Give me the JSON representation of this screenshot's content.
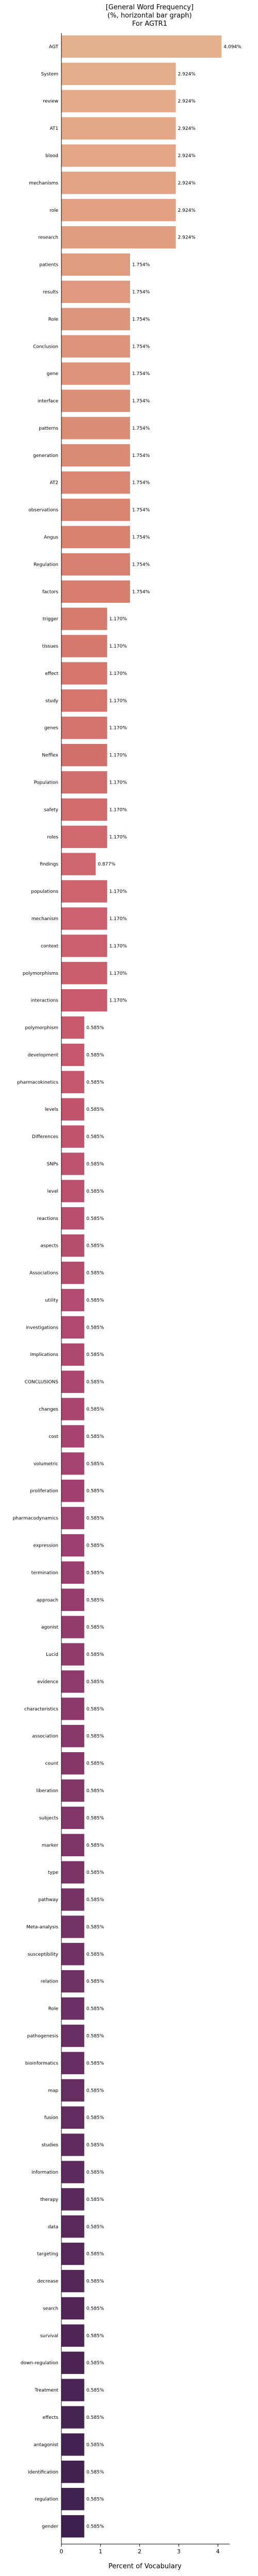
{
  "chart_data": {
    "type": "bar",
    "orientation": "horizontal",
    "title_lines": [
      "[General Word Frequency]",
      "(%, horizontal bar graph)",
      "For AGTR1"
    ],
    "xlabel": "Percent of Vocabulary",
    "xlim": [
      0,
      4.3
    ],
    "xticks": [
      0,
      1,
      2,
      3,
      4
    ],
    "grid": false,
    "color_gradient": [
      "#e5b08c",
      "#d9826f",
      "#c8586d",
      "#9e3f70",
      "#6a2f63",
      "#3d1f4d"
    ],
    "categories": [
      "AGT",
      "System",
      "review",
      "AT1",
      "blood",
      "mechanisms",
      "role",
      "research",
      "patients",
      "results",
      "Role",
      "Conclusion",
      "gene",
      "interface",
      "patterns",
      "generation",
      "AT2",
      "observations",
      "Angus",
      "Regulation",
      "factors",
      "trigger",
      "tissues",
      "effect",
      "study",
      "genes",
      "Nefflex",
      "Population",
      "safety",
      "roles",
      "findings",
      "populations",
      "mechanism",
      "context",
      "polymorphisms",
      "interactions",
      "polymorphism",
      "development",
      "pharmacokinetics",
      "levels",
      "Differences",
      "SNPs",
      "level",
      "reactions",
      "aspects",
      "Associations",
      "utility",
      "investigations",
      "Implications",
      "CONCLUSIONS",
      "changes",
      "cost",
      "volumetric",
      "proliferation",
      "pharmacodynamics",
      "expression",
      "termination",
      "approach",
      "agonist",
      "Lucid",
      "evidence",
      "characteristics",
      "association",
      "count",
      "liberation",
      "subjects",
      "marker",
      "type",
      "pathway",
      "Meta-analysis",
      "susceptibility",
      "relation",
      "Role",
      "pathogenesis",
      "bioinformatics",
      "map",
      "fusion",
      "studies",
      "information",
      "therapy",
      "data",
      "targeting",
      "decrease",
      "search",
      "survival",
      "down-regulation",
      "Treatment",
      "effects",
      "antagonist",
      "identification",
      "regulation",
      "gender"
    ],
    "values": [
      4.094,
      2.924,
      2.924,
      2.924,
      2.924,
      2.924,
      2.924,
      2.924,
      1.754,
      1.754,
      1.754,
      1.754,
      1.754,
      1.754,
      1.754,
      1.754,
      1.754,
      1.754,
      1.754,
      1.754,
      1.754,
      1.17,
      1.17,
      1.17,
      1.17,
      1.17,
      1.17,
      1.17,
      1.17,
      1.17,
      0.877,
      1.17,
      1.17,
      1.17,
      1.17,
      1.17,
      0.585,
      0.585,
      0.585,
      0.585,
      0.585,
      0.585,
      0.585,
      0.585,
      0.585,
      0.585,
      0.585,
      0.585,
      0.585,
      0.585,
      0.585,
      0.585,
      0.585,
      0.585,
      0.585,
      0.585,
      0.585,
      0.585,
      0.585,
      0.585,
      0.585,
      0.585,
      0.585,
      0.585,
      0.585,
      0.585,
      0.585,
      0.585,
      0.585,
      0.585,
      0.585,
      0.585,
      0.585,
      0.585,
      0.585,
      0.585,
      0.585,
      0.585,
      0.585,
      0.585,
      0.585,
      0.585,
      0.585,
      0.585,
      0.585,
      0.585,
      0.585,
      0.585,
      0.585,
      0.585,
      0.585,
      0.585
    ],
    "value_labels": [
      "4.094%",
      "2.924%",
      "2.924%",
      "2.924%",
      "2.924%",
      "2.924%",
      "2.924%",
      "2.924%",
      "1.754%",
      "1.754%",
      "1.754%",
      "1.754%",
      "1.754%",
      "1.754%",
      "1.754%",
      "1.754%",
      "1.754%",
      "1.754%",
      "1.754%",
      "1.754%",
      "1.754%",
      "1.170%",
      "1.170%",
      "1.170%",
      "1.170%",
      "1.170%",
      "1.170%",
      "1.170%",
      "1.170%",
      "1.170%",
      "0.877%",
      "1.170%",
      "1.170%",
      "1.170%",
      "1.170%",
      "1.170%",
      "0.585%",
      "0.585%",
      "0.585%",
      "0.585%",
      "0.585%",
      "0.585%",
      "0.585%",
      "0.585%",
      "0.585%",
      "0.585%",
      "0.585%",
      "0.585%",
      "0.585%",
      "0.585%",
      "0.585%",
      "0.585%",
      "0.585%",
      "0.585%",
      "0.585%",
      "0.585%",
      "0.585%",
      "0.585%",
      "0.585%",
      "0.585%",
      "0.585%",
      "0.585%",
      "0.585%",
      "0.585%",
      "0.585%",
      "0.585%",
      "0.585%",
      "0.585%",
      "0.585%",
      "0.585%",
      "0.585%",
      "0.585%",
      "0.585%",
      "0.585%",
      "0.585%",
      "0.585%",
      "0.585%",
      "0.585%",
      "0.585%",
      "0.585%",
      "0.585%",
      "0.585%",
      "0.585%",
      "0.585%",
      "0.585%",
      "0.585%",
      "0.585%",
      "0.585%",
      "0.585%",
      "0.585%",
      "0.585%",
      "0.585%"
    ]
  }
}
